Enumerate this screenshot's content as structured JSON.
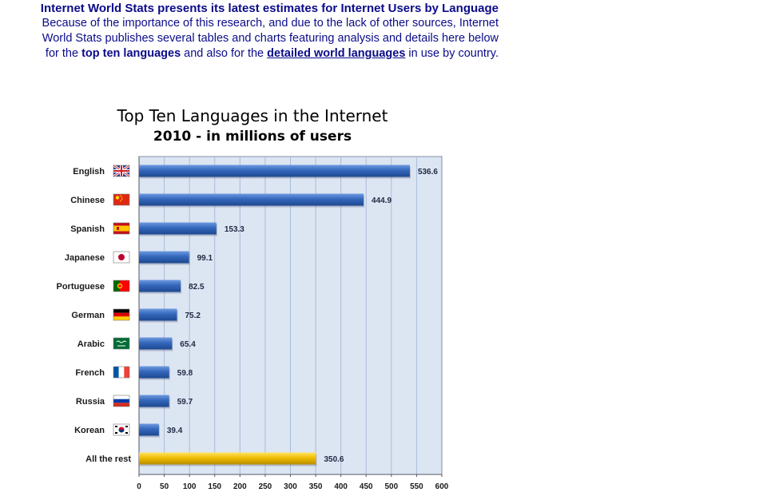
{
  "intro": {
    "headline": "Internet World Stats presents its latest estimates for Internet Users by Language",
    "line1": "Because of the importance of this research, and due to the lack of other sources, Internet",
    "line2": "World Stats publishes several tables and charts featuring analysis and details here below",
    "line3_pre": "for the ",
    "link_top_ten": "top ten languages",
    "line3_mid": " and also for the ",
    "link_detailed": "detailed world languages",
    "line3_post": " in use by country."
  },
  "chart_data": {
    "type": "bar",
    "orientation": "horizontal",
    "title": "Top Ten Languages in the Internet",
    "subtitle": "2010 - in millions of users",
    "categories": [
      "English",
      "Chinese",
      "Spanish",
      "Japanese",
      "Portuguese",
      "German",
      "Arabic",
      "French",
      "Russia",
      "Korean",
      "All the rest"
    ],
    "values": [
      536.6,
      444.9,
      153.3,
      99.1,
      82.5,
      75.2,
      65.4,
      59.8,
      59.7,
      39.4,
      350.6
    ],
    "value_labels": [
      "536.6",
      "444.9",
      "153.3",
      "99.1",
      "82.5",
      "75.2",
      "65.4",
      "59.8",
      "59.7",
      "39.4",
      "350.6"
    ],
    "flags": [
      "uk-flag-icon",
      "china-flag-icon",
      "spain-flag-icon",
      "japan-flag-icon",
      "portugal-flag-icon",
      "germany-flag-icon",
      "saudi-arabia-flag-icon",
      "france-flag-icon",
      "russia-flag-icon",
      "korea-flag-icon",
      ""
    ],
    "xlim": [
      0,
      600
    ],
    "x_ticks": [
      "0",
      "50",
      "100",
      "150",
      "200",
      "250",
      "300",
      "350",
      "400",
      "450",
      "500",
      "550",
      "600"
    ],
    "grid": true,
    "bar_color": "#2e63b4",
    "highlight_color": "#e6b400",
    "plot_background": "#dce5f2",
    "grid_color": "#a9bcd8"
  }
}
